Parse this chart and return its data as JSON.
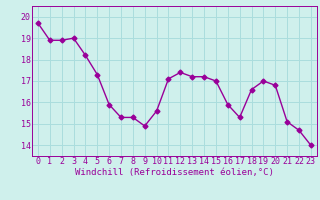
{
  "x": [
    0,
    1,
    2,
    3,
    4,
    5,
    6,
    7,
    8,
    9,
    10,
    11,
    12,
    13,
    14,
    15,
    16,
    17,
    18,
    19,
    20,
    21,
    22,
    23
  ],
  "y": [
    19.7,
    18.9,
    18.9,
    19.0,
    18.2,
    17.3,
    15.9,
    15.3,
    15.3,
    14.9,
    15.6,
    17.1,
    17.4,
    17.2,
    17.2,
    17.0,
    15.9,
    15.3,
    16.6,
    17.0,
    16.8,
    15.1,
    14.7,
    14.0
  ],
  "line_color": "#990099",
  "marker": "D",
  "marker_size": 2.5,
  "line_width": 1.0,
  "bg_color": "#cff0ec",
  "grid_color": "#aadddd",
  "xlabel": "Windchill (Refroidissement éolien,°C)",
  "xlabel_fontsize": 6.5,
  "tick_fontsize": 6.0,
  "ylim": [
    13.5,
    20.5
  ],
  "xlim": [
    -0.5,
    23.5
  ],
  "yticks": [
    14,
    15,
    16,
    17,
    18,
    19,
    20
  ],
  "xticks": [
    0,
    1,
    2,
    3,
    4,
    5,
    6,
    7,
    8,
    9,
    10,
    11,
    12,
    13,
    14,
    15,
    16,
    17,
    18,
    19,
    20,
    21,
    22,
    23
  ]
}
